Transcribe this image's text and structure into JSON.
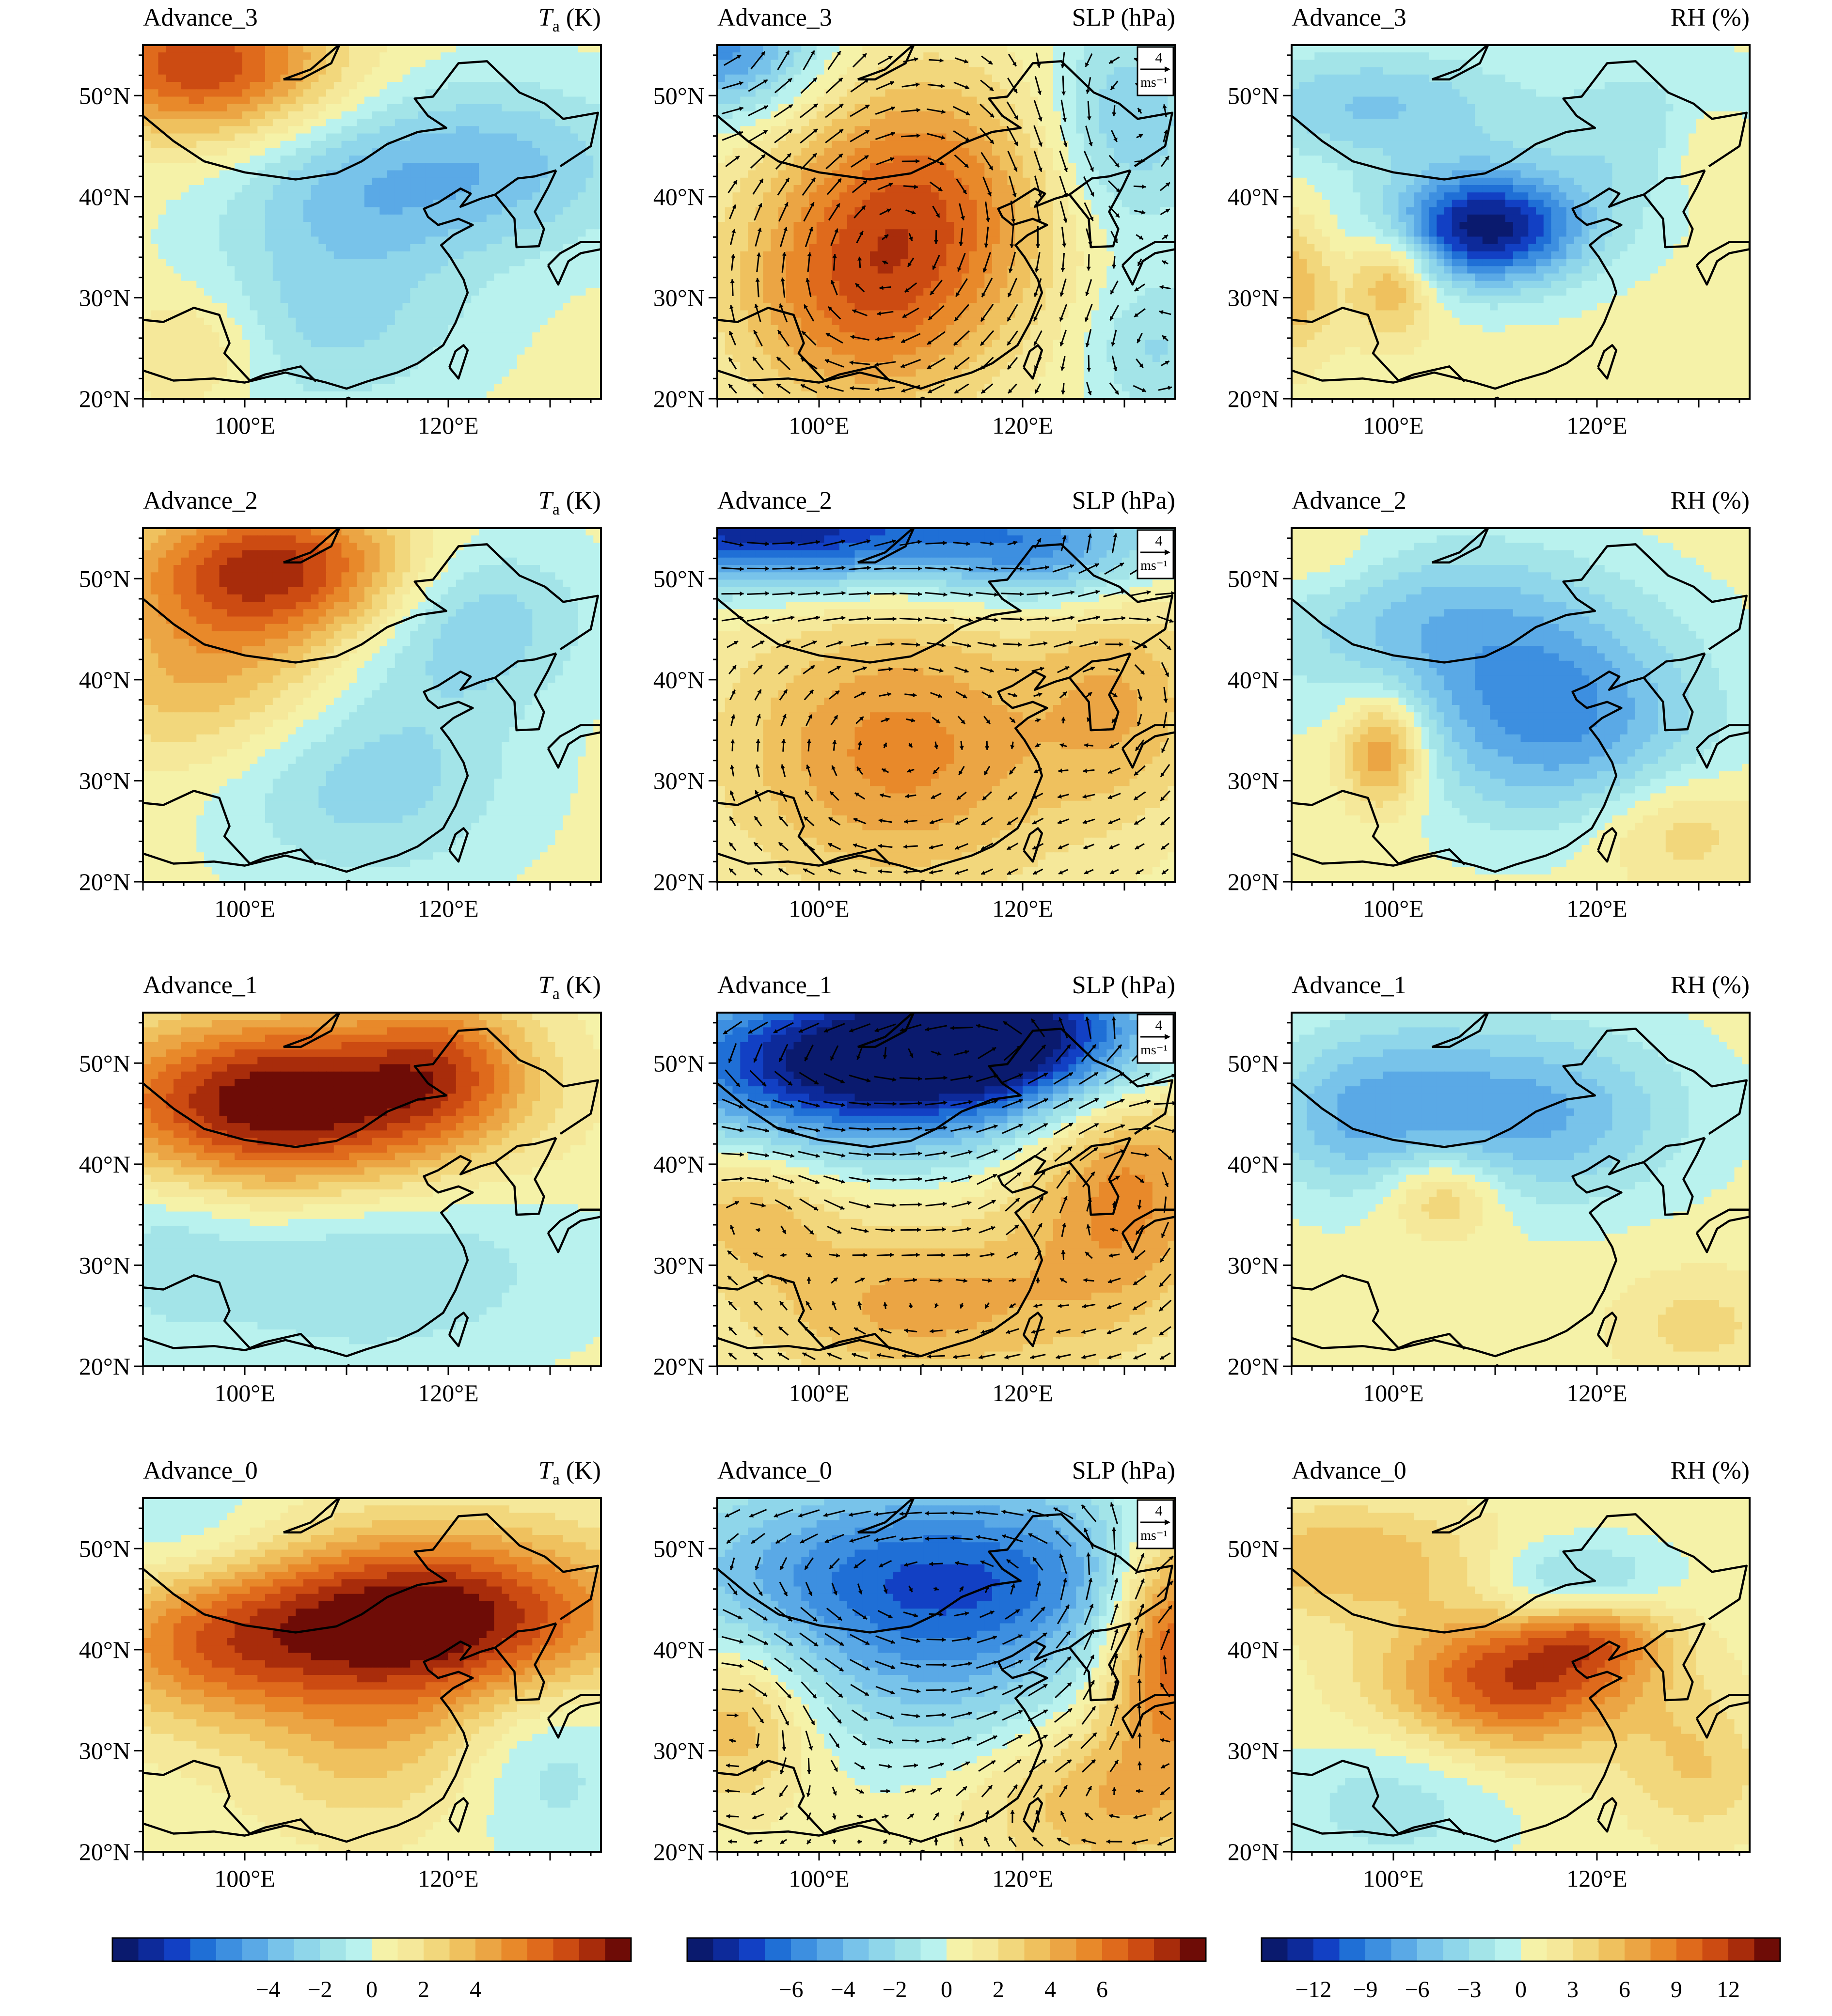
{
  "figure": {
    "rows": [
      "Advance_3",
      "Advance_2",
      "Advance_1",
      "Advance_0"
    ],
    "columns": [
      {
        "key": "ta",
        "var_symbol": "T",
        "var_sub": "a",
        "unit": "(K)"
      },
      {
        "key": "slp",
        "var_text": "SLP (hPa)",
        "vector_ref_value": "4",
        "vector_ref_unit": "ms⁻¹"
      },
      {
        "key": "rh",
        "var_text": "RH (%)"
      }
    ],
    "map_domain": {
      "lon_min": 90,
      "lon_max": 135,
      "lat_min": 20,
      "lat_max": 55
    },
    "lat_ticks": [
      "20°N",
      "30°N",
      "40°N",
      "50°N"
    ],
    "lon_ticks": [
      "100°E",
      "120°E"
    ],
    "colorbars": [
      {
        "ticks": [
          "−4",
          "−2",
          "0",
          "2",
          "4"
        ]
      },
      {
        "ticks": [
          "−6",
          "−4",
          "−2",
          "0",
          "2",
          "4",
          "6"
        ]
      },
      {
        "ticks": [
          "−12",
          "−9",
          "−6",
          "−3",
          "0",
          "3",
          "6",
          "9",
          "12"
        ]
      }
    ],
    "colors": {
      "deep_blue": "#0a1a6e",
      "mid_blue": "#1f6fd6",
      "cyan": "#b9f2ee",
      "yellow": "#f5e89a",
      "orange": "#e8892a",
      "dark_red": "#6e0c06",
      "coast": "#000000"
    }
  }
}
